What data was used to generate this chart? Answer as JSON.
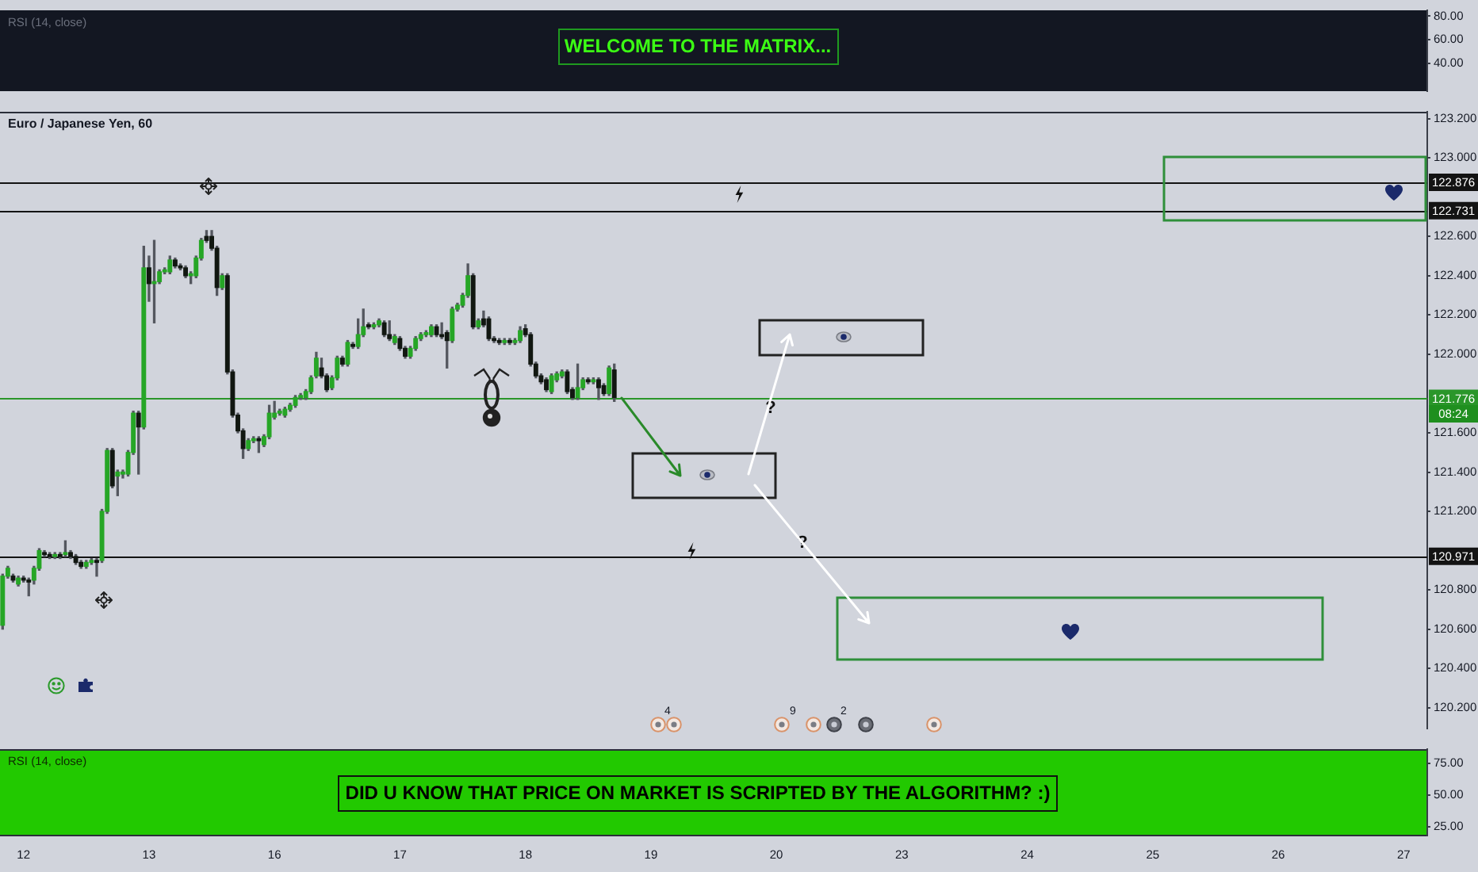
{
  "chart_data": [
    {
      "type": "line",
      "title": "RSI (14, close)",
      "categories": [
        null,
        null,
        null,
        null,
        "12",
        null,
        null,
        null,
        null,
        null,
        null,
        null,
        null,
        null,
        null,
        null,
        null,
        null,
        null,
        null,
        null,
        null,
        null,
        null,
        null,
        null,
        null,
        null,
        "13",
        null,
        null,
        null,
        null,
        null,
        null,
        null,
        null,
        null,
        null,
        null,
        null,
        null,
        null,
        null,
        null,
        null,
        null,
        null,
        null,
        null,
        null,
        null,
        "16",
        null,
        null,
        null,
        null,
        null,
        null,
        null,
        null,
        null,
        null,
        null,
        null,
        null,
        null,
        null,
        null,
        null,
        null,
        null,
        null,
        null,
        null,
        null,
        "17",
        null,
        null,
        null,
        null,
        null,
        null,
        null,
        null,
        null,
        null,
        null,
        null,
        null,
        null,
        null,
        null,
        null,
        null,
        null,
        null,
        null,
        null,
        null,
        "18",
        null,
        null,
        null,
        null,
        null,
        null,
        null,
        null,
        null,
        null,
        null,
        null,
        null,
        null,
        null,
        null,
        null,
        null,
        null,
        null,
        null,
        null,
        null,
        "19",
        null,
        null,
        null,
        null,
        null,
        null,
        null,
        null,
        null,
        null,
        null,
        null,
        null,
        null,
        null,
        null,
        null,
        null,
        null,
        null,
        null,
        null,
        null,
        "20",
        null,
        null,
        null,
        null,
        null,
        null,
        null,
        null,
        null,
        null,
        null,
        null,
        null,
        null,
        null,
        null,
        null,
        null,
        null,
        null,
        null,
        null,
        null,
        "23",
        null,
        null,
        null,
        null,
        null,
        null,
        null,
        null,
        null,
        null,
        null,
        null,
        null,
        null,
        null,
        null,
        null,
        null,
        null,
        null,
        null,
        null,
        null,
        "24",
        null,
        null,
        null,
        null,
        null,
        null,
        null,
        null,
        null,
        null,
        null,
        null,
        null,
        null,
        null,
        null,
        null,
        null,
        null,
        null,
        null,
        null,
        null,
        "25",
        null,
        null,
        null,
        null,
        null,
        null,
        null,
        null,
        null,
        null,
        null,
        null,
        null,
        null,
        null,
        null,
        null,
        null,
        null,
        null,
        null,
        null,
        null,
        "26",
        null,
        null,
        null,
        null,
        null,
        null,
        null,
        null,
        null,
        null,
        null,
        null,
        null,
        null,
        null,
        null,
        null,
        null,
        null,
        null,
        null,
        null,
        null,
        "27",
        null,
        null,
        null,
        null
      ],
      "ylim": [
        16,
        85
      ],
      "yticks": [
        {
          "value": 40,
          "label": "40.00"
        },
        {
          "value": 60,
          "label": "60.00"
        },
        {
          "value": 80,
          "label": "80.00"
        }
      ],
      "tick_labels": "y",
      "annotations": [
        "WELCOME TO THE MATRIX..."
      ]
    },
    {
      "type": "candlestick",
      "title": "Euro / Japanese Yen, 60",
      "categories": [
        null,
        null,
        null,
        null,
        "12",
        null,
        null,
        null,
        null,
        null,
        null,
        null,
        null,
        null,
        null,
        null,
        null,
        null,
        null,
        null,
        null,
        null,
        null,
        null,
        null,
        null,
        null,
        null,
        "13",
        null,
        null,
        null,
        null,
        null,
        null,
        null,
        null,
        null,
        null,
        null,
        null,
        null,
        null,
        null,
        null,
        null,
        null,
        null,
        null,
        null,
        null,
        null,
        "16",
        null,
        null,
        null,
        null,
        null,
        null,
        null,
        null,
        null,
        null,
        null,
        null,
        null,
        null,
        null,
        null,
        null,
        null,
        null,
        null,
        null,
        null,
        null,
        "17",
        null,
        null,
        null,
        null,
        null,
        null,
        null,
        null,
        null,
        null,
        null,
        null,
        null,
        null,
        null,
        null,
        null,
        null,
        null,
        null,
        null,
        null,
        null,
        "18",
        null,
        null,
        null,
        null,
        null,
        null,
        null,
        null,
        null,
        null,
        null,
        null,
        null,
        null,
        null,
        null,
        null,
        null,
        null,
        null,
        null,
        null,
        null,
        "19",
        null,
        null,
        null,
        null,
        null,
        null,
        null,
        null,
        null,
        null,
        null,
        null,
        null,
        null,
        null,
        null,
        null,
        null,
        null,
        null,
        null,
        null,
        null,
        "20",
        null,
        null,
        null,
        null,
        null,
        null,
        null,
        null,
        null,
        null,
        null,
        null,
        null,
        null,
        null,
        null,
        null,
        null,
        null,
        null,
        null,
        null,
        null,
        "23",
        null,
        null,
        null,
        null,
        null,
        null,
        null,
        null,
        null,
        null,
        null,
        null,
        null,
        null,
        null,
        null,
        null,
        null,
        null,
        null,
        null,
        null,
        null,
        "24",
        null,
        null,
        null,
        null,
        null,
        null,
        null,
        null,
        null,
        null,
        null,
        null,
        null,
        null,
        null,
        null,
        null,
        null,
        null,
        null,
        null,
        null,
        null,
        "25",
        null,
        null,
        null,
        null,
        null,
        null,
        null,
        null,
        null,
        null,
        null,
        null,
        null,
        null,
        null,
        null,
        null,
        null,
        null,
        null,
        null,
        null,
        null,
        "26",
        null,
        null,
        null,
        null,
        null,
        null,
        null,
        null,
        null,
        null,
        null,
        null,
        null,
        null,
        null,
        null,
        null,
        null,
        null,
        null,
        null,
        null,
        null,
        "27",
        null,
        null,
        null,
        null
      ],
      "ohlc": [
        [
          120.62,
          120.88,
          120.6,
          120.87
        ],
        [
          120.87,
          120.92,
          120.86,
          120.91
        ],
        [
          120.87,
          120.88,
          120.84,
          120.85
        ],
        [
          120.83,
          120.87,
          120.82,
          120.86
        ],
        [
          120.86,
          120.87,
          120.84,
          120.85
        ],
        [
          120.85,
          120.86,
          120.77,
          120.84
        ],
        [
          120.85,
          120.92,
          120.83,
          120.91
        ],
        [
          120.91,
          121.01,
          120.9,
          121.0
        ],
        [
          120.99,
          121.0,
          120.97,
          120.98
        ],
        [
          120.98,
          120.99,
          120.96,
          120.97
        ],
        [
          120.97,
          120.99,
          120.96,
          120.98
        ],
        [
          120.98,
          120.99,
          120.96,
          120.97
        ],
        [
          120.98,
          121.05,
          120.97,
          120.99
        ],
        [
          120.99,
          121.0,
          120.96,
          120.97
        ],
        [
          120.97,
          120.98,
          120.93,
          120.94
        ],
        [
          120.94,
          120.95,
          120.91,
          120.92
        ],
        [
          120.92,
          120.95,
          120.91,
          120.94
        ],
        [
          120.94,
          120.96,
          120.93,
          120.95
        ],
        [
          120.95,
          120.96,
          120.87,
          120.94
        ],
        [
          120.95,
          121.21,
          120.94,
          121.2
        ],
        [
          121.2,
          121.52,
          121.19,
          121.51
        ],
        [
          121.51,
          121.52,
          121.32,
          121.33
        ],
        [
          121.38,
          121.41,
          121.28,
          121.4
        ],
        [
          121.39,
          121.41,
          121.37,
          121.4
        ],
        [
          121.39,
          121.51,
          121.38,
          121.5
        ],
        [
          121.5,
          121.71,
          121.49,
          121.7
        ],
        [
          121.7,
          121.71,
          121.39,
          121.63
        ],
        [
          121.63,
          122.55,
          121.62,
          122.44
        ],
        [
          122.44,
          122.5,
          122.27,
          122.36
        ],
        [
          122.36,
          122.58,
          122.16,
          122.37
        ],
        [
          122.37,
          122.43,
          122.36,
          122.42
        ],
        [
          122.42,
          122.44,
          122.41,
          122.43
        ],
        [
          122.42,
          122.5,
          122.41,
          122.48
        ],
        [
          122.48,
          122.49,
          122.44,
          122.45
        ],
        [
          122.45,
          122.46,
          122.43,
          122.44
        ],
        [
          122.44,
          122.45,
          122.39,
          122.4
        ],
        [
          122.4,
          122.42,
          122.36,
          122.41
        ],
        [
          122.4,
          122.5,
          122.39,
          122.49
        ],
        [
          122.49,
          122.59,
          122.48,
          122.58
        ],
        [
          122.6,
          122.63,
          122.57,
          122.58
        ],
        [
          122.6,
          122.63,
          122.53,
          122.54
        ],
        [
          122.54,
          122.55,
          122.3,
          122.34
        ],
        [
          122.34,
          122.41,
          122.33,
          122.4
        ],
        [
          122.4,
          122.41,
          121.9,
          121.91
        ],
        [
          121.91,
          121.92,
          121.68,
          121.69
        ],
        [
          121.69,
          121.7,
          121.6,
          121.61
        ],
        [
          121.61,
          121.62,
          121.47,
          121.52
        ],
        [
          121.52,
          121.57,
          121.51,
          121.56
        ],
        [
          121.56,
          121.58,
          121.55,
          121.57
        ],
        [
          121.57,
          121.58,
          121.5,
          121.56
        ],
        [
          121.54,
          121.59,
          121.53,
          121.58
        ],
        [
          121.58,
          121.74,
          121.57,
          121.7
        ],
        [
          121.68,
          121.76,
          121.67,
          121.7
        ],
        [
          121.7,
          121.72,
          121.69,
          121.71
        ],
        [
          121.69,
          121.73,
          121.68,
          121.72
        ],
        [
          121.72,
          121.75,
          121.71,
          121.74
        ],
        [
          121.74,
          121.79,
          121.73,
          121.78
        ],
        [
          121.78,
          121.8,
          121.77,
          121.79
        ],
        [
          121.78,
          121.82,
          121.77,
          121.81
        ],
        [
          121.81,
          121.89,
          121.8,
          121.88
        ],
        [
          121.89,
          122.01,
          121.88,
          121.98
        ],
        [
          121.93,
          121.98,
          121.88,
          121.89
        ],
        [
          121.89,
          121.9,
          121.81,
          121.82
        ],
        [
          121.83,
          121.89,
          121.82,
          121.88
        ],
        [
          121.88,
          121.99,
          121.87,
          121.98
        ],
        [
          121.98,
          121.99,
          121.94,
          121.95
        ],
        [
          121.95,
          122.07,
          121.94,
          122.06
        ],
        [
          122.05,
          122.06,
          122.03,
          122.04
        ],
        [
          122.04,
          122.18,
          122.03,
          122.1
        ],
        [
          122.1,
          122.23,
          122.09,
          122.14
        ],
        [
          122.15,
          122.16,
          122.13,
          122.14
        ],
        [
          122.14,
          122.16,
          122.13,
          122.15
        ],
        [
          122.15,
          122.18,
          122.14,
          122.17
        ],
        [
          122.16,
          122.17,
          122.09,
          122.1
        ],
        [
          122.1,
          122.17,
          122.07,
          122.08
        ],
        [
          122.06,
          122.1,
          122.05,
          122.09
        ],
        [
          122.08,
          122.09,
          122.02,
          122.03
        ],
        [
          122.03,
          122.04,
          121.98,
          121.99
        ],
        [
          121.99,
          122.04,
          121.98,
          122.03
        ],
        [
          122.03,
          122.09,
          122.02,
          122.08
        ],
        [
          122.08,
          122.11,
          122.07,
          122.1
        ],
        [
          122.1,
          122.12,
          122.09,
          122.11
        ],
        [
          122.1,
          122.15,
          122.09,
          122.14
        ],
        [
          122.14,
          122.15,
          122.09,
          122.1
        ],
        [
          122.1,
          122.16,
          122.08,
          122.09
        ],
        [
          122.11,
          122.12,
          121.93,
          122.07
        ],
        [
          122.07,
          122.24,
          122.06,
          122.23
        ],
        [
          122.23,
          122.26,
          122.22,
          122.25
        ],
        [
          122.25,
          122.31,
          122.24,
          122.3
        ],
        [
          122.3,
          122.46,
          122.29,
          122.4
        ],
        [
          122.4,
          122.41,
          122.13,
          122.14
        ],
        [
          122.14,
          122.18,
          122.13,
          122.17
        ],
        [
          122.18,
          122.22,
          122.14,
          122.15
        ],
        [
          122.18,
          122.19,
          122.07,
          122.08
        ],
        [
          122.08,
          122.09,
          122.06,
          122.07
        ],
        [
          122.07,
          122.08,
          122.05,
          122.06
        ],
        [
          122.06,
          122.08,
          122.05,
          122.07
        ],
        [
          122.07,
          122.08,
          122.05,
          122.06
        ],
        [
          122.06,
          122.08,
          122.05,
          122.07
        ],
        [
          122.07,
          122.14,
          122.06,
          122.12
        ],
        [
          122.13,
          122.15,
          122.09,
          122.1
        ],
        [
          122.1,
          122.11,
          121.94,
          121.95
        ],
        [
          121.95,
          121.96,
          121.88,
          121.89
        ],
        [
          121.89,
          121.9,
          121.85,
          121.86
        ],
        [
          121.87,
          121.88,
          121.81,
          121.82
        ],
        [
          121.81,
          121.9,
          121.8,
          121.89
        ],
        [
          121.87,
          121.91,
          121.86,
          121.9
        ],
        [
          121.89,
          121.92,
          121.88,
          121.91
        ],
        [
          121.91,
          121.92,
          121.8,
          121.81
        ],
        [
          121.82,
          121.83,
          121.77,
          121.78
        ],
        [
          121.78,
          121.95,
          121.77,
          121.83
        ],
        [
          121.83,
          121.88,
          121.82,
          121.87
        ],
        [
          121.87,
          121.88,
          121.85,
          121.86
        ],
        [
          121.86,
          121.88,
          121.85,
          121.87
        ],
        [
          121.87,
          121.88,
          121.77,
          121.83
        ],
        [
          121.84,
          121.85,
          121.79,
          121.8
        ],
        [
          121.8,
          121.94,
          121.79,
          121.93
        ],
        [
          121.92,
          121.95,
          121.76,
          121.78
        ],
        null,
        null,
        null,
        null,
        null,
        null,
        null,
        null,
        null,
        null,
        null,
        null,
        null,
        null,
        null,
        null,
        null,
        null,
        null,
        null,
        null,
        null,
        null,
        null,
        null,
        null,
        null,
        null,
        null,
        null,
        null,
        null,
        null,
        null,
        null,
        null,
        null,
        null,
        null,
        null,
        null,
        null,
        null,
        null,
        null,
        null,
        null,
        null,
        null,
        null,
        null,
        null,
        null,
        null,
        null,
        null,
        null,
        null,
        null,
        null,
        null,
        null,
        null,
        null,
        null,
        null,
        null,
        null,
        null,
        null,
        null,
        null,
        null,
        null,
        null,
        null,
        null,
        null,
        null,
        null,
        null,
        null,
        null,
        null,
        null,
        null,
        null,
        null,
        null,
        null,
        null,
        null,
        null,
        null,
        null,
        null,
        null,
        null,
        null,
        null,
        null,
        null,
        null,
        null,
        null,
        null,
        null,
        null,
        null,
        null,
        null,
        null,
        null,
        null,
        null,
        null,
        null,
        null,
        null,
        null,
        null,
        null,
        null,
        null,
        null,
        null,
        null,
        null,
        null,
        null,
        null,
        null,
        null,
        null,
        null,
        null,
        null,
        null,
        null,
        null,
        null,
        null,
        null,
        null,
        null,
        null,
        null,
        null,
        null,
        null,
        null,
        null,
        null,
        null,
        null
      ],
      "colors": [
        "#26a626",
        "#26a626",
        "#111711",
        "#26a626",
        "#111711",
        "#111711",
        "#26a626",
        "#26a626",
        "#111711",
        "#111711",
        "#26a626",
        "#111711",
        "#26a626",
        "#111711",
        "#111711",
        "#111711",
        "#26a626",
        "#26a626",
        "#111711",
        "#26a626",
        "#26a626",
        "#111711",
        "#26a626",
        "#26a626",
        "#26a626",
        "#26a626",
        "#111711",
        "#26a626",
        "#111711",
        "#26a626",
        "#26a626",
        "#26a626",
        "#26a626",
        "#111711",
        "#111711",
        "#111711",
        "#26a626",
        "#26a626",
        "#26a626",
        "#111711",
        "#111711",
        "#111711",
        "#26a626",
        "#111711",
        "#111711",
        "#111711",
        "#111711",
        "#26a626",
        "#26a626",
        "#111711",
        "#26a626",
        "#26a626",
        "#26a626",
        "#26a626",
        "#26a626",
        "#26a626",
        "#26a626",
        "#26a626",
        "#26a626",
        "#26a626",
        "#26a626",
        "#111711",
        "#111711",
        "#26a626",
        "#26a626",
        "#111711",
        "#26a626",
        "#111711",
        "#26a626",
        "#26a626",
        "#111711",
        "#26a626",
        "#26a626",
        "#111711",
        "#111711",
        "#26a626",
        "#111711",
        "#111711",
        "#26a626",
        "#26a626",
        "#26a626",
        "#26a626",
        "#26a626",
        "#111711",
        "#111711",
        "#111711",
        "#26a626",
        "#26a626",
        "#26a626",
        "#26a626",
        "#111711",
        "#26a626",
        "#111711",
        "#111711",
        "#111711",
        "#111711",
        "#26a626",
        "#111711",
        "#26a626",
        "#26a626",
        "#111711",
        "#111711",
        "#111711",
        "#111711",
        "#111711",
        "#26a626",
        "#26a626",
        "#26a626",
        "#111711",
        "#111711",
        "#26a626",
        "#26a626",
        "#111711",
        "#26a626",
        "#111711",
        "#111711",
        "#26a626",
        "#111711",
        null,
        null,
        null,
        null,
        null,
        null,
        null,
        null,
        null,
        null,
        null,
        null,
        null,
        null,
        null,
        null,
        null,
        null,
        null,
        null,
        null,
        null,
        null,
        null,
        null,
        null,
        null,
        null,
        null,
        null,
        null,
        null,
        null,
        null,
        null,
        null,
        null,
        null,
        null,
        null,
        null,
        null,
        null,
        null,
        null,
        null,
        null,
        null,
        null,
        null,
        null,
        null,
        null,
        null,
        null,
        null,
        null,
        null,
        null,
        null,
        null,
        null,
        null,
        null,
        null,
        null,
        null,
        null,
        null,
        null,
        null,
        null,
        null,
        null,
        null,
        null,
        null,
        null,
        null,
        null,
        null,
        null,
        null,
        null,
        null,
        null,
        null,
        null,
        null,
        null,
        null,
        null,
        null,
        null,
        null,
        null,
        null,
        null,
        null,
        null,
        null,
        null,
        null,
        null,
        null,
        null,
        null,
        null,
        null,
        null,
        null,
        null,
        null,
        null,
        null,
        null,
        null,
        null,
        null,
        null,
        null,
        null,
        null,
        null,
        null,
        null,
        null,
        null,
        null,
        null,
        null,
        null,
        null,
        null,
        null,
        null,
        null,
        null,
        null,
        null,
        null,
        null,
        null,
        null,
        null,
        null,
        null,
        null,
        null,
        null,
        null,
        null,
        null,
        null,
        null
      ],
      "ylim": [
        120.094,
        123.235
      ],
      "yticks": [
        {
          "value": 120.2,
          "label": "120.200"
        },
        {
          "value": 120.4,
          "label": "120.400"
        },
        {
          "value": 120.6,
          "label": "120.600"
        },
        {
          "value": 120.8,
          "label": "120.800"
        },
        {
          "value": 121.2,
          "label": "121.200"
        },
        {
          "value": 121.4,
          "label": "121.400"
        },
        {
          "value": 121.6,
          "label": "121.600"
        },
        {
          "value": 122,
          "label": "122.000"
        },
        {
          "value": 122.2,
          "label": "122.200"
        },
        {
          "value": 122.4,
          "label": "122.400"
        },
        {
          "value": 122.6,
          "label": "122.600"
        },
        {
          "value": 123,
          "label": "123.000"
        },
        {
          "value": 123.2,
          "label": "123.200"
        }
      ],
      "tick_labels": "y",
      "ref_lines": [
        {
          "axis": "y",
          "value": 122.876,
          "label": "122.876",
          "color": "#131313"
        },
        {
          "axis": "y",
          "value": 122.731,
          "label": "122.731",
          "color": "#131313"
        },
        {
          "axis": "y",
          "value": 121.776,
          "label": "121.776",
          "color": "#2a962a"
        },
        {
          "axis": "y",
          "value": 120.971,
          "label": "120.971",
          "color": "#131313"
        }
      ],
      "annotations": [
        "?",
        "?",
        "4",
        "9",
        "2",
        "08:24"
      ]
    },
    {
      "type": "line",
      "title": "RSI (14, close)",
      "categories": [
        null,
        null,
        null,
        null,
        "12",
        null,
        null,
        null,
        null,
        null,
        null,
        null,
        null,
        null,
        null,
        null,
        null,
        null,
        null,
        null,
        null,
        null,
        null,
        null,
        null,
        null,
        null,
        null,
        "13",
        null,
        null,
        null,
        null,
        null,
        null,
        null,
        null,
        null,
        null,
        null,
        null,
        null,
        null,
        null,
        null,
        null,
        null,
        null,
        null,
        null,
        null,
        null,
        "16",
        null,
        null,
        null,
        null,
        null,
        null,
        null,
        null,
        null,
        null,
        null,
        null,
        null,
        null,
        null,
        null,
        null,
        null,
        null,
        null,
        null,
        null,
        null,
        "17",
        null,
        null,
        null,
        null,
        null,
        null,
        null,
        null,
        null,
        null,
        null,
        null,
        null,
        null,
        null,
        null,
        null,
        null,
        null,
        null,
        null,
        null,
        null,
        "18",
        null,
        null,
        null,
        null,
        null,
        null,
        null,
        null,
        null,
        null,
        null,
        null,
        null,
        null,
        null,
        null,
        null,
        null,
        null,
        null,
        null,
        null,
        null,
        "19",
        null,
        null,
        null,
        null,
        null,
        null,
        null,
        null,
        null,
        null,
        null,
        null,
        null,
        null,
        null,
        null,
        null,
        null,
        null,
        null,
        null,
        null,
        null,
        "20",
        null,
        null,
        null,
        null,
        null,
        null,
        null,
        null,
        null,
        null,
        null,
        null,
        null,
        null,
        null,
        null,
        null,
        null,
        null,
        null,
        null,
        null,
        null,
        "23",
        null,
        null,
        null,
        null,
        null,
        null,
        null,
        null,
        null,
        null,
        null,
        null,
        null,
        null,
        null,
        null,
        null,
        null,
        null,
        null,
        null,
        null,
        null,
        "24",
        null,
        null,
        null,
        null,
        null,
        null,
        null,
        null,
        null,
        null,
        null,
        null,
        null,
        null,
        null,
        null,
        null,
        null,
        null,
        null,
        null,
        null,
        null,
        "25",
        null,
        null,
        null,
        null,
        null,
        null,
        null,
        null,
        null,
        null,
        null,
        null,
        null,
        null,
        null,
        null,
        null,
        null,
        null,
        null,
        null,
        null,
        null,
        "26",
        null,
        null,
        null,
        null,
        null,
        null,
        null,
        null,
        null,
        null,
        null,
        null,
        null,
        null,
        null,
        null,
        null,
        null,
        null,
        null,
        null,
        null,
        null,
        "27",
        null,
        null,
        null,
        null
      ],
      "ylim": [
        18,
        86
      ],
      "yticks": [
        {
          "value": 25,
          "label": "25.00"
        },
        {
          "value": 50,
          "label": "50.00"
        },
        {
          "value": 75,
          "label": "75.00"
        }
      ],
      "annotations": [
        "DID U KNOW THAT PRICE ON MARKET IS SCRIPTED BY THE ALGORITHM? :)"
      ]
    }
  ]
}
